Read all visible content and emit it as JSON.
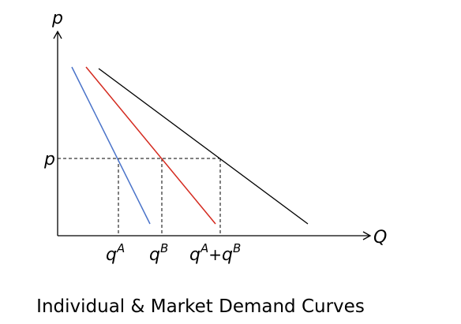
{
  "diagram": {
    "y_axis_label": "p",
    "x_axis_label": "Q",
    "price_label": "p",
    "tick_a": {
      "base": "q",
      "sup": "A"
    },
    "tick_b": {
      "base": "q",
      "sup": "B"
    },
    "tick_sum": {
      "base1": "q",
      "sup1": "A",
      "plus": "+",
      "base2": "q",
      "sup2": "B"
    },
    "caption": "Individual & Market Demand Curves",
    "colors": {
      "demand_a": "#4a73c9",
      "demand_b": "#d42a1f",
      "demand_market": "#000000",
      "axes": "#000000",
      "guides": "#000000"
    }
  }
}
